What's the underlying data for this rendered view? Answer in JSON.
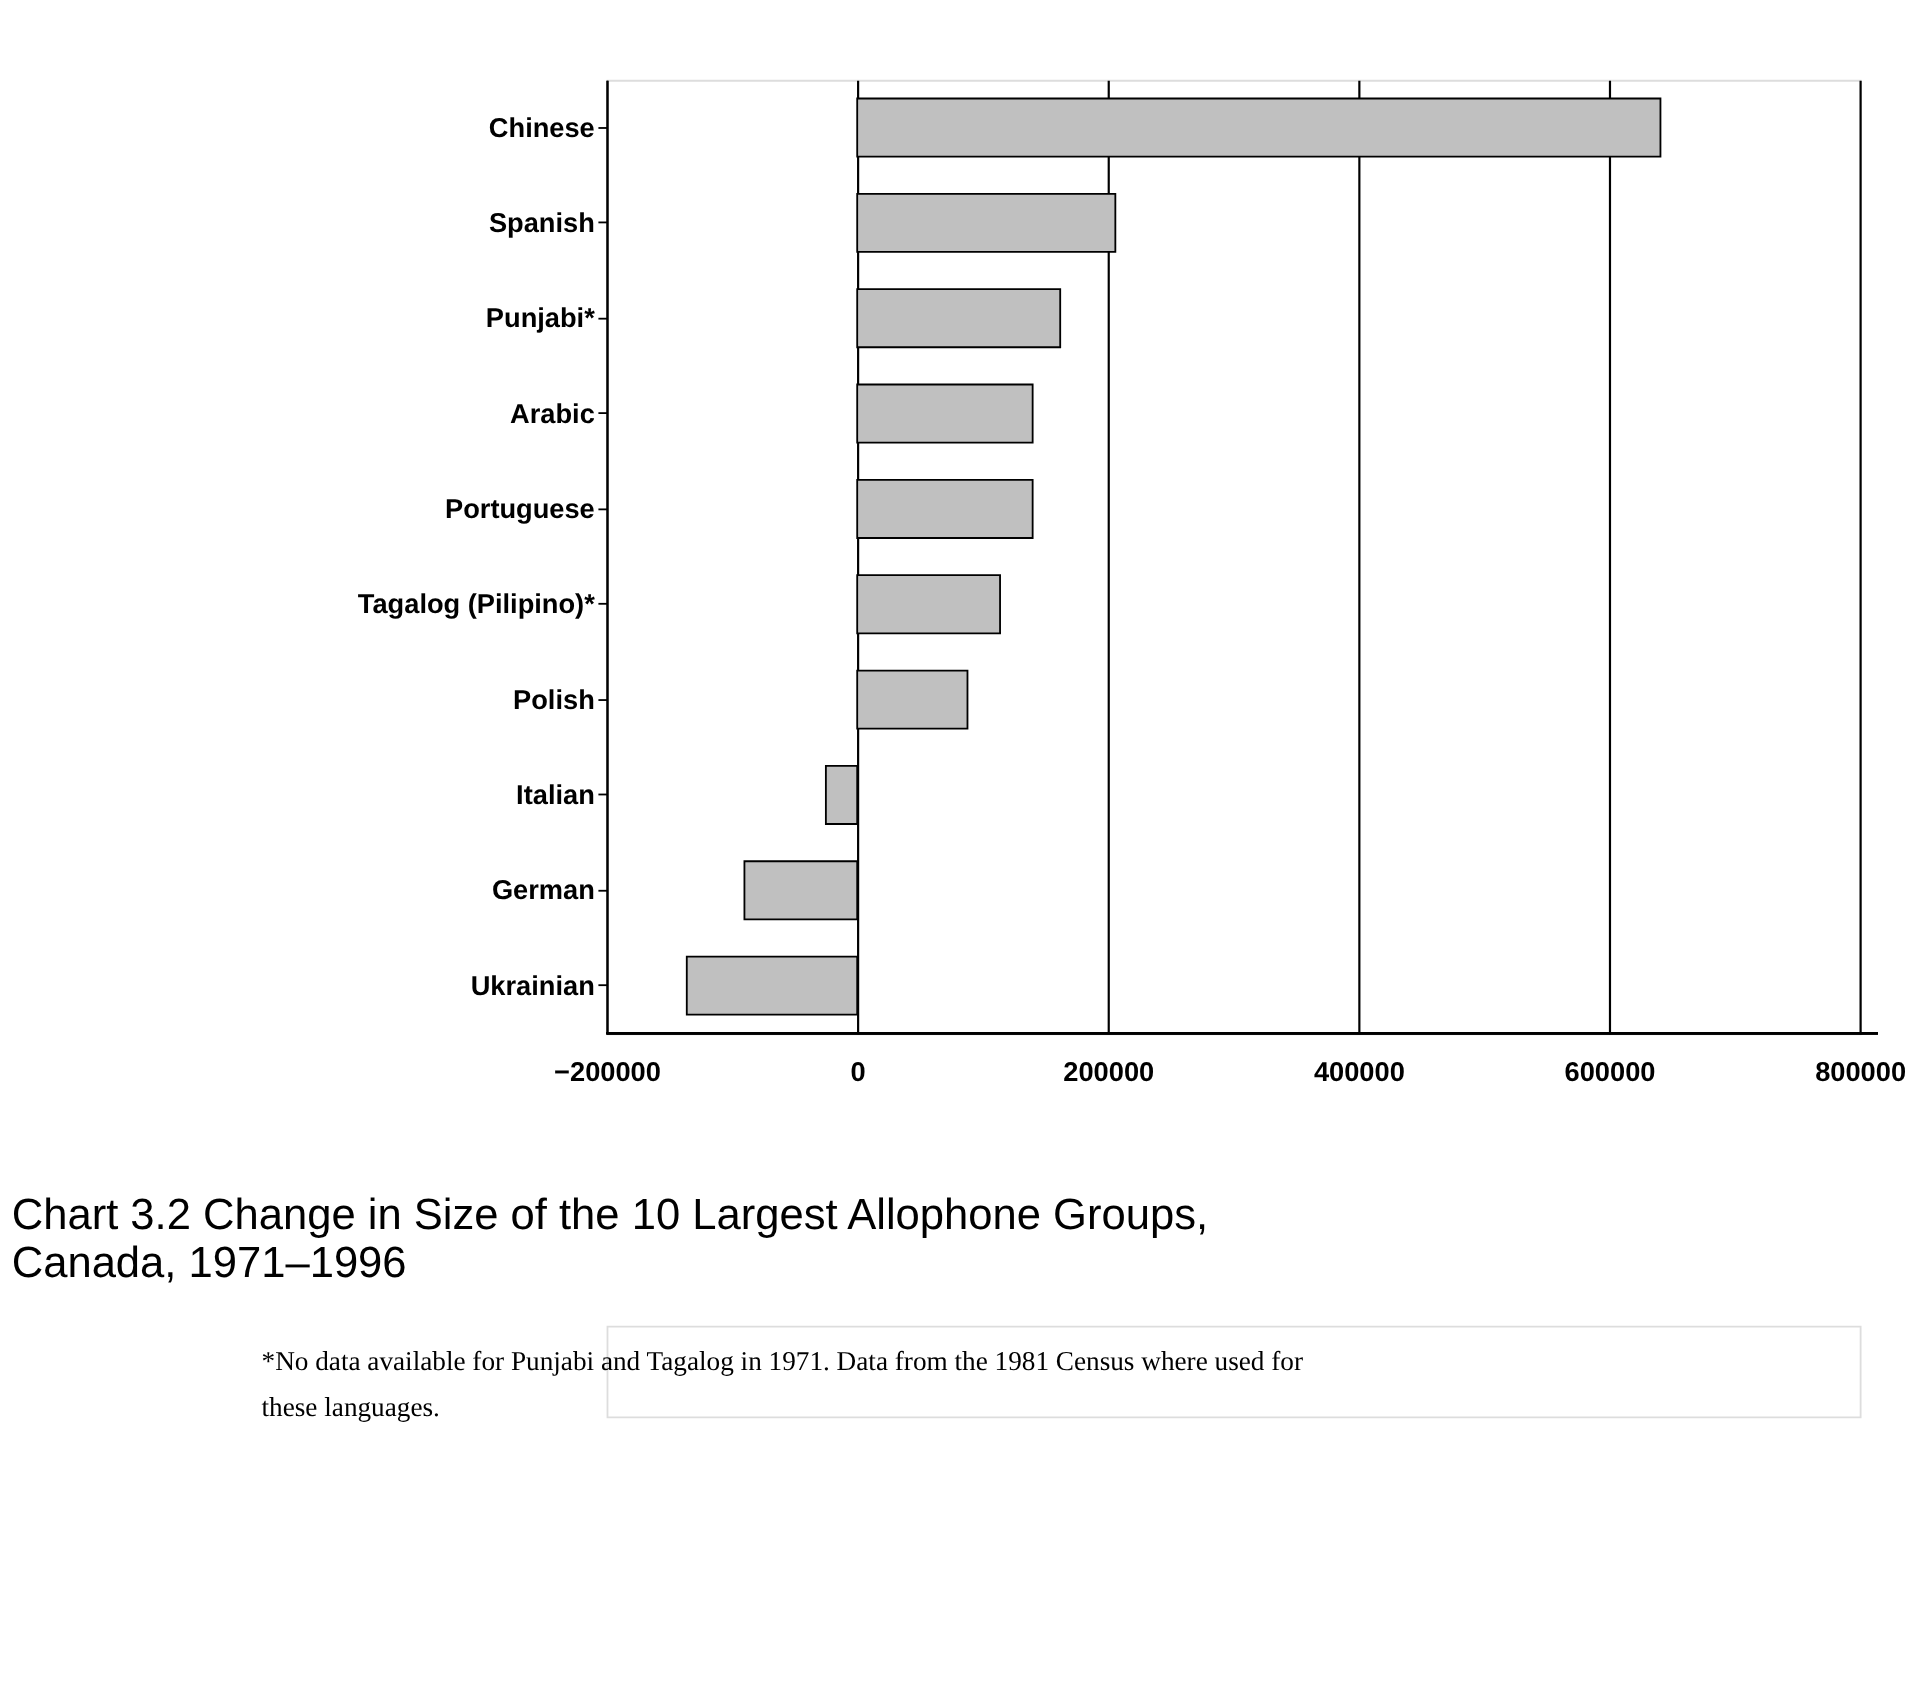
{
  "chart_data": {
    "type": "bar",
    "orientation": "horizontal",
    "title": "Chart 3.2 Change in Size of the 10 Largest Allophone Groups, Canada, 1971–1996",
    "categories": [
      "Chinese",
      "Spanish",
      "Punjabi*",
      "Arabic",
      "Portuguese",
      "Tagalog (Pilipino)*",
      "Polish",
      "Italian",
      "German",
      "Ukrainian"
    ],
    "values": [
      641000,
      206000,
      162000,
      140000,
      140000,
      114000,
      88000,
      -25000,
      -90000,
      -136000
    ],
    "color": "#c0c0c0",
    "xlim": [
      -200000,
      800000
    ],
    "xticks": [
      -200000,
      0,
      200000,
      400000,
      600000,
      800000
    ],
    "grid": "x",
    "annotations": [
      "*No data available for Punjabi and Tagalog in 1971. Data from the 1981 Census where used for these languages."
    ]
  }
}
